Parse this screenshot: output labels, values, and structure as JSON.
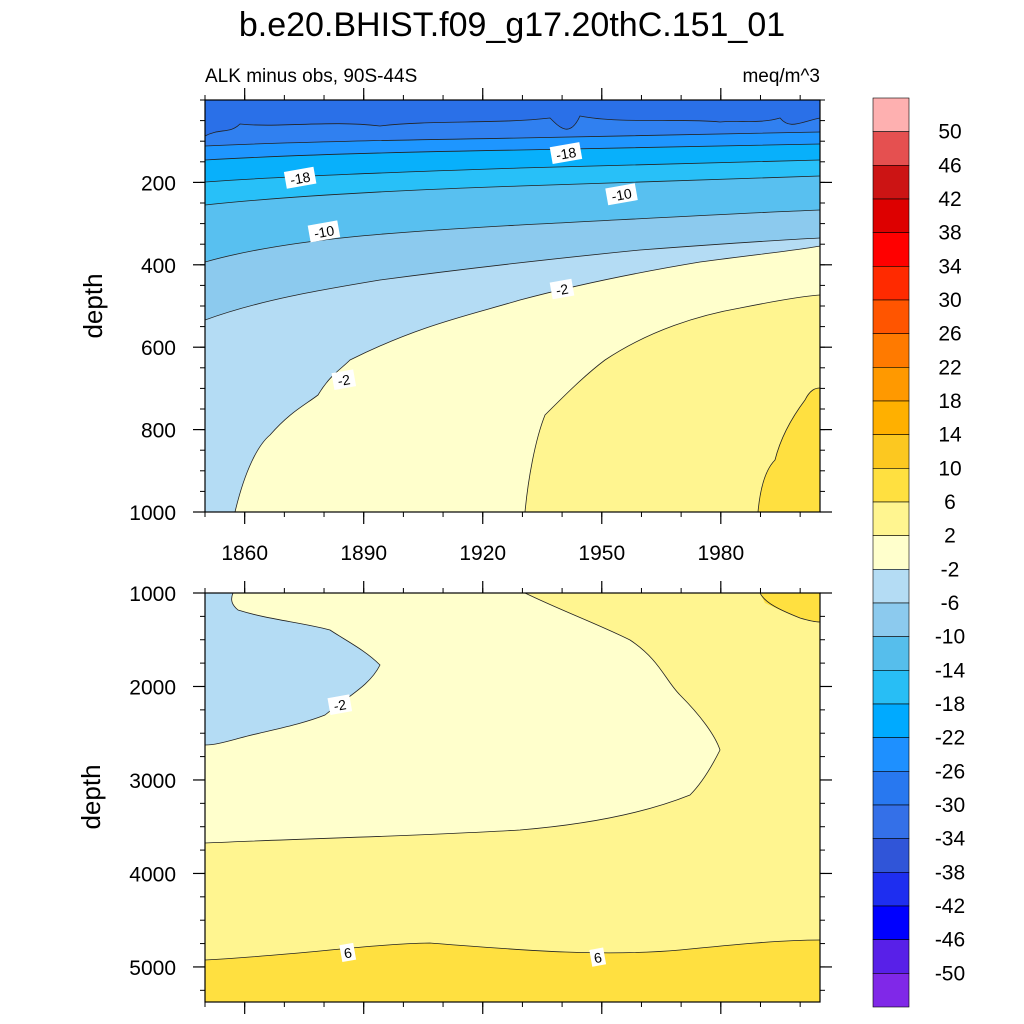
{
  "chart_data": {
    "type": "contour",
    "title": "b.e20.BHIST.f09_g17.20thC.151_01",
    "subtitle_left": "ALK minus obs, 90S-44S",
    "subtitle_right": "meq/m^3",
    "xlabel": "",
    "xlim": [
      1850,
      2005
    ],
    "xticks": [
      1860,
      1890,
      1920,
      1950,
      1980
    ],
    "panels": [
      {
        "id": "upper",
        "ylabel": "depth",
        "ylim": [
          1000,
          0
        ],
        "yticks": [
          200,
          400,
          600,
          800,
          1000
        ],
        "contour_labels": [
          {
            "text": "-18",
            "x": 1874,
            "y": 190
          },
          {
            "text": "-18",
            "x": 1941,
            "y": 130
          },
          {
            "text": "-10",
            "x": 1880,
            "y": 320
          },
          {
            "text": "-10",
            "x": 1955,
            "y": 230
          },
          {
            "text": "-2",
            "x": 1940,
            "y": 460
          },
          {
            "text": "-2",
            "x": 1885,
            "y": 680
          }
        ]
      },
      {
        "id": "lower",
        "ylabel": "depth",
        "ylim": [
          5375,
          1000
        ],
        "yticks": [
          1000,
          2000,
          3000,
          4000,
          5000
        ],
        "contour_labels": [
          {
            "text": "-2",
            "x": 1884,
            "y": 2200
          },
          {
            "text": "6",
            "x": 1886,
            "y": 4850
          },
          {
            "text": "6",
            "x": 1949,
            "y": 4900
          }
        ]
      }
    ],
    "colorbar": {
      "labels": [
        "50",
        "46",
        "42",
        "38",
        "34",
        "30",
        "26",
        "22",
        "18",
        "14",
        "10",
        "6",
        "2",
        "-2",
        "-6",
        "-10",
        "-14",
        "-18",
        "-22",
        "-26",
        "-30",
        "-34",
        "-38",
        "-42",
        "-46",
        "-50"
      ],
      "colors": [
        "#feb0b0",
        "#e55050",
        "#cc1414",
        "#dd0000",
        "#ff0000",
        "#ff2a00",
        "#ff5500",
        "#ff7a00",
        "#ff9900",
        "#ffb000",
        "#fcc820",
        "#ffe040",
        "#fff590",
        "#ffffcc",
        "#b4dcf4",
        "#8ccaee",
        "#56beec",
        "#28bef5",
        "#00aaff",
        "#1e90ff",
        "#2878f0",
        "#3470e8",
        "#3055d8",
        "#1e2ef0",
        "#0000ff",
        "#5820e8",
        "#8028e8"
      ]
    },
    "fill_colors": {
      "lt_m34": "#2a70e8",
      "m34_m26": "#3080f0",
      "m26_m22": "#1e96ff",
      "m22_m18": "#08b0fb",
      "m18_m14": "#28c0f8",
      "m14_m10": "#58c0f0",
      "m10_m6": "#8ccaee",
      "m6_m2": "#b4dcf4",
      "m2_p2": "#ffffcc",
      "p2_p6": "#fff590",
      "p6_p10": "#ffe040"
    }
  }
}
